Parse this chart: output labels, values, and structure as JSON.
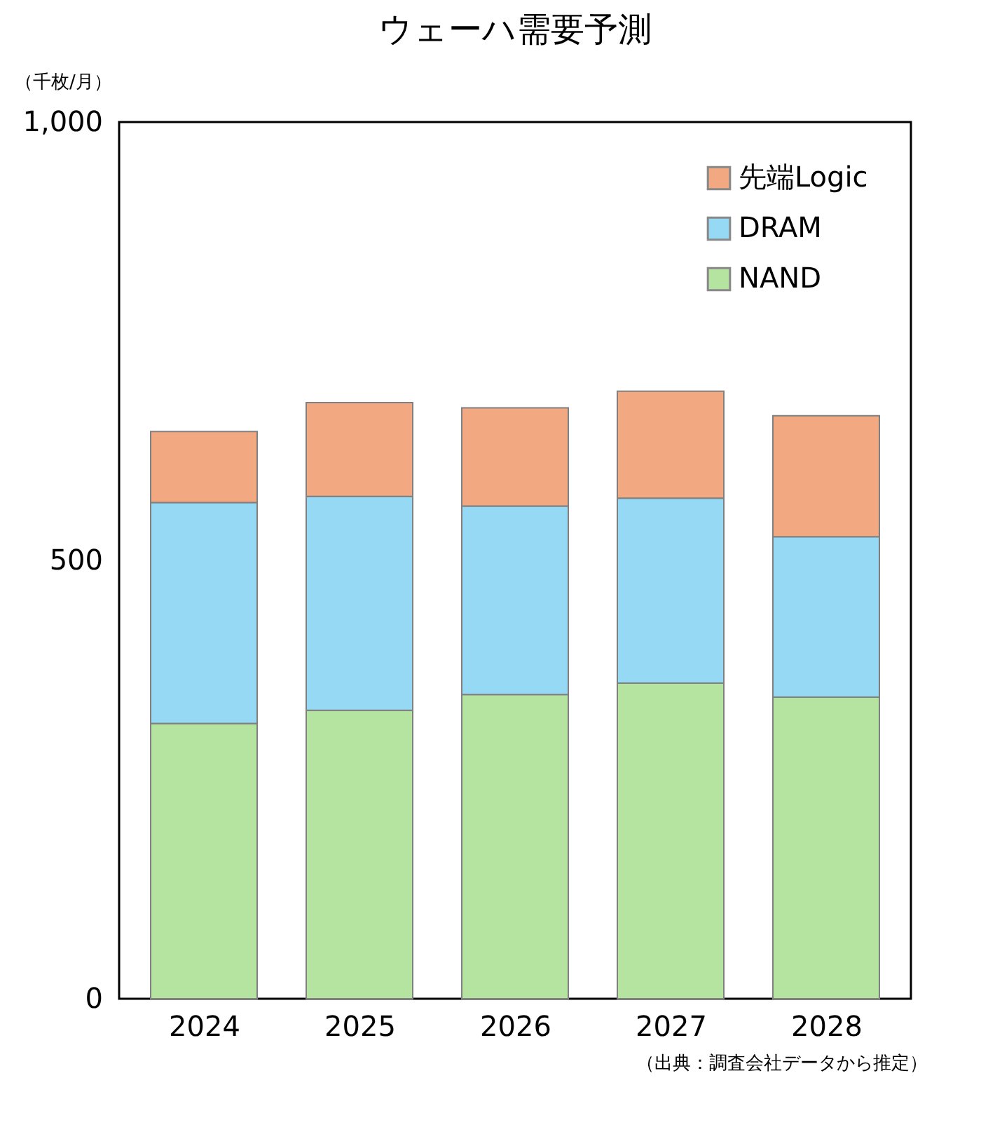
{
  "chart_data": {
    "type": "bar",
    "stacked": true,
    "title": "ウェーハ需要予測",
    "ylabel": "（千枚/月）",
    "categories": [
      "2024",
      "2025",
      "2026",
      "2027",
      "2028"
    ],
    "series": [
      {
        "name": "NAND",
        "color": "#b5e3a0",
        "values": [
          314,
          329,
          347,
          360,
          344
        ]
      },
      {
        "name": "DRAM",
        "color": "#95d9f5",
        "values": [
          252,
          244,
          215,
          211,
          183
        ]
      },
      {
        "name": "先端Logic",
        "color": "#f2a982",
        "values": [
          81,
          107,
          112,
          122,
          138
        ]
      }
    ],
    "ylim": [
      0,
      1000
    ],
    "yticks": [
      0,
      500,
      {
        "value": 1000,
        "label": "1,000"
      }
    ],
    "grid": false,
    "legend": "top right",
    "annotations": [
      "（出典：調査会社データから推定）"
    ]
  }
}
